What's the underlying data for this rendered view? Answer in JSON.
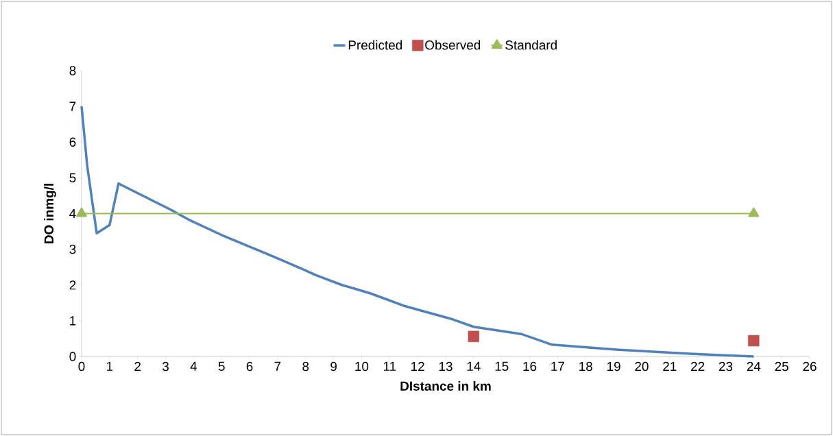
{
  "chart_data": {
    "type": "line",
    "xlabel": "DIstance in km",
    "ylabel": "DO inmg/l",
    "xlim": [
      0,
      26
    ],
    "ylim": [
      0,
      8
    ],
    "xticks": [
      0,
      1,
      2,
      3,
      4,
      5,
      6,
      7,
      8,
      9,
      10,
      11,
      12,
      13,
      14,
      15,
      16,
      17,
      18,
      19,
      20,
      21,
      22,
      23,
      24,
      25,
      26
    ],
    "yticks": [
      0,
      1,
      2,
      3,
      4,
      5,
      6,
      7,
      8
    ],
    "grid": false,
    "legend": "top",
    "series": [
      {
        "name": "Predicted",
        "marker": "none",
        "color": "#4f81bd",
        "x": [
          0,
          0.2,
          0.54,
          1.0,
          1.32,
          3.2,
          3.9,
          5.0,
          6.0,
          6.9,
          7.85,
          8.35,
          9.3,
          10.3,
          11.5,
          13.25,
          14.0,
          15.7,
          16.8,
          19.1,
          21.6,
          24
        ],
        "values": [
          7.0,
          5.34,
          3.45,
          3.68,
          4.84,
          4.1,
          3.8,
          3.4,
          3.07,
          2.78,
          2.46,
          2.28,
          2.0,
          1.77,
          1.42,
          1.04,
          0.83,
          0.63,
          0.33,
          0.19,
          0.08,
          0
        ]
      },
      {
        "name": "Observed",
        "type": "scatter",
        "marker": "square",
        "color": "#c0504d",
        "x": [
          14,
          24
        ],
        "values": [
          0.56,
          0.44
        ]
      },
      {
        "name": "Standard",
        "type": "line",
        "marker": "triangle",
        "color": "#9bbb59",
        "x": [
          0,
          24
        ],
        "values": [
          4,
          4
        ]
      }
    ]
  }
}
